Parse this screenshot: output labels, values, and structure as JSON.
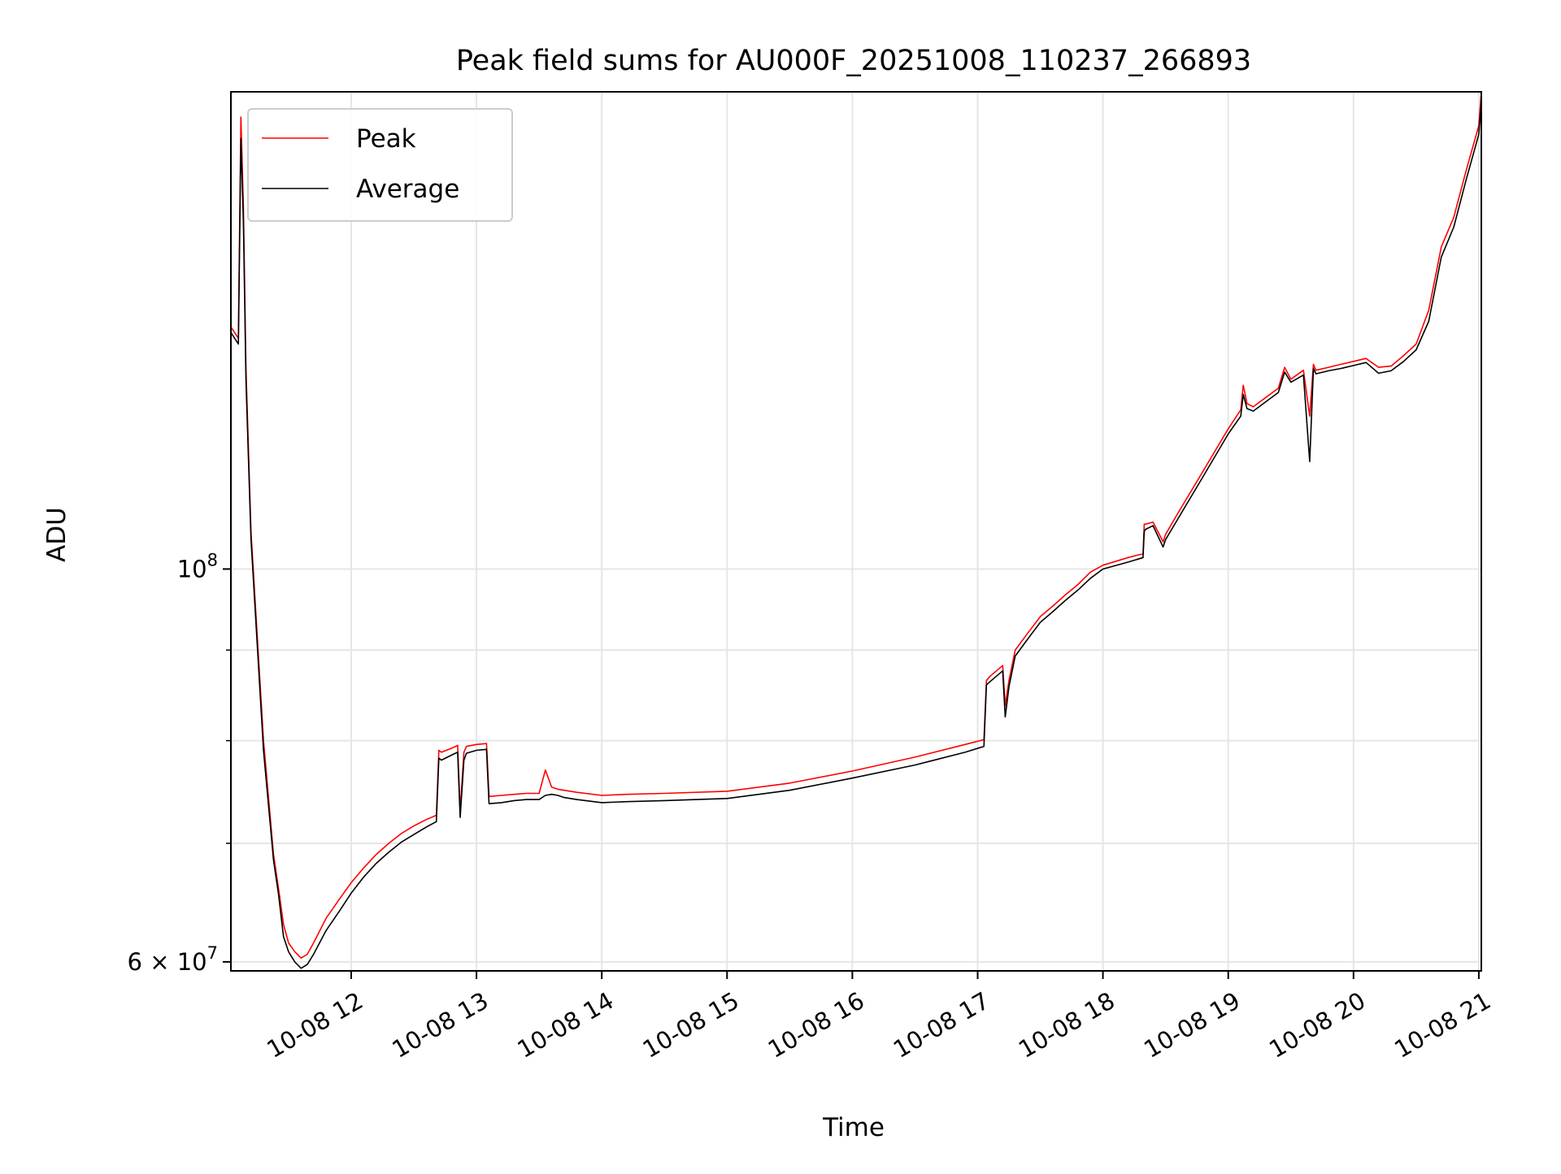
{
  "chart_data": {
    "type": "line",
    "title": "Peak field sums for AU000F_20251008_110237_266893",
    "xlabel": "Time",
    "ylabel": "ADU",
    "yscale": "log",
    "grid": true,
    "legend_position": "top-left",
    "xlim": [
      11.04,
      21.02
    ],
    "ylim": [
      59300000,
      186000000
    ],
    "x_ticks": [
      {
        "value": 12,
        "label": "10-08 12"
      },
      {
        "value": 13,
        "label": "10-08 13"
      },
      {
        "value": 14,
        "label": "10-08 14"
      },
      {
        "value": 15,
        "label": "10-08 15"
      },
      {
        "value": 16,
        "label": "10-08 16"
      },
      {
        "value": 17,
        "label": "10-08 17"
      },
      {
        "value": 18,
        "label": "10-08 18"
      },
      {
        "value": 19,
        "label": "10-08 19"
      },
      {
        "value": 20,
        "label": "10-08 20"
      },
      {
        "value": 21,
        "label": "10-08 21"
      }
    ],
    "y_major_ticks": [
      {
        "value": 100000000,
        "base": "10",
        "exp": "8"
      },
      {
        "value": 60000000,
        "base": "6 × 10",
        "exp": "7"
      }
    ],
    "y_minor_ticks": [
      70000000,
      80000000,
      90000000
    ],
    "x_unit": "hour of day on 10-08",
    "series": [
      {
        "name": "Peak",
        "color": "#ff0000",
        "x": [
          11.04,
          11.1,
          11.12,
          11.14,
          11.16,
          11.2,
          11.3,
          11.38,
          11.42,
          11.46,
          11.5,
          11.55,
          11.6,
          11.65,
          11.7,
          11.8,
          11.9,
          12.0,
          12.1,
          12.2,
          12.3,
          12.4,
          12.5,
          12.6,
          12.68,
          12.7,
          12.72,
          12.8,
          12.85,
          12.87,
          12.9,
          12.92,
          13.0,
          13.08,
          13.1,
          13.2,
          13.3,
          13.4,
          13.5,
          13.55,
          13.6,
          13.65,
          13.7,
          13.8,
          14.0,
          14.2,
          14.5,
          15.0,
          15.5,
          16.0,
          16.5,
          16.9,
          17.05,
          17.07,
          17.1,
          17.2,
          17.22,
          17.25,
          17.3,
          17.4,
          17.5,
          17.6,
          17.7,
          17.8,
          17.9,
          18.0,
          18.2,
          18.32,
          18.33,
          18.34,
          18.4,
          18.48,
          18.5,
          18.6,
          18.8,
          19.0,
          19.1,
          19.12,
          19.15,
          19.2,
          19.3,
          19.4,
          19.45,
          19.5,
          19.6,
          19.65,
          19.68,
          19.7,
          19.8,
          19.9,
          20.0,
          20.1,
          20.2,
          20.3,
          20.4,
          20.5,
          20.6,
          20.7,
          20.8,
          20.9,
          21.0,
          21.02
        ],
        "y": [
          137000000,
          135000000,
          180000000,
          160000000,
          130000000,
          105000000,
          80000000,
          69000000,
          66000000,
          63000000,
          61500000,
          60800000,
          60300000,
          60600000,
          61500000,
          63500000,
          65000000,
          66500000,
          67800000,
          69000000,
          70000000,
          70900000,
          71600000,
          72200000,
          72600000,
          79000000,
          78800000,
          79200000,
          79500000,
          73000000,
          78800000,
          79400000,
          79600000,
          79700000,
          74400000,
          74500000,
          74600000,
          74700000,
          74700000,
          77000000,
          75300000,
          75100000,
          75000000,
          74800000,
          74500000,
          74600000,
          74700000,
          74900000,
          75700000,
          76900000,
          78300000,
          79600000,
          80100000,
          86500000,
          87000000,
          88200000,
          83700000,
          86500000,
          90000000,
          92000000,
          94000000,
          95300000,
          96700000,
          98000000,
          99600000,
          100500000,
          101500000,
          102000000,
          106000000,
          106000000,
          106300000,
          103600000,
          104600000,
          107600000,
          113600000,
          120000000,
          123000000,
          127000000,
          124000000,
          123500000,
          125000000,
          126500000,
          130000000,
          128000000,
          129500000,
          122000000,
          130500000,
          129500000,
          130000000,
          130500000,
          131000000,
          131500000,
          130000000,
          130200000,
          132000000,
          134000000,
          140000000,
          152000000,
          158000000,
          168000000,
          178000000,
          186000000
        ]
      },
      {
        "name": "Average",
        "color": "#000000",
        "x": [
          11.04,
          11.1,
          11.12,
          11.14,
          11.16,
          11.2,
          11.3,
          11.38,
          11.42,
          11.46,
          11.5,
          11.55,
          11.6,
          11.65,
          11.7,
          11.8,
          11.9,
          12.0,
          12.1,
          12.2,
          12.3,
          12.4,
          12.5,
          12.6,
          12.68,
          12.7,
          12.72,
          12.8,
          12.85,
          12.87,
          12.9,
          12.92,
          13.0,
          13.08,
          13.1,
          13.2,
          13.3,
          13.4,
          13.5,
          13.55,
          13.6,
          13.65,
          13.7,
          13.8,
          14.0,
          14.2,
          14.5,
          15.0,
          15.5,
          16.0,
          16.5,
          16.9,
          17.05,
          17.07,
          17.1,
          17.2,
          17.22,
          17.25,
          17.3,
          17.4,
          17.5,
          17.6,
          17.7,
          17.8,
          17.9,
          18.0,
          18.2,
          18.32,
          18.33,
          18.34,
          18.4,
          18.48,
          18.5,
          18.6,
          18.8,
          19.0,
          19.1,
          19.12,
          19.15,
          19.2,
          19.3,
          19.4,
          19.45,
          19.5,
          19.6,
          19.65,
          19.68,
          19.7,
          19.8,
          19.9,
          20.0,
          20.1,
          20.2,
          20.3,
          20.4,
          20.5,
          20.6,
          20.7,
          20.8,
          20.9,
          21.0,
          21.02
        ],
        "y": [
          136000000,
          134000000,
          175000000,
          157000000,
          128000000,
          104000000,
          79000000,
          68500000,
          65500000,
          62000000,
          60800000,
          60000000,
          59500000,
          59800000,
          60600000,
          62500000,
          64000000,
          65600000,
          67000000,
          68200000,
          69200000,
          70100000,
          70800000,
          71500000,
          72000000,
          78200000,
          78000000,
          78500000,
          78800000,
          72400000,
          78000000,
          78700000,
          79000000,
          79100000,
          73700000,
          73800000,
          74000000,
          74100000,
          74100000,
          74500000,
          74600000,
          74500000,
          74300000,
          74100000,
          73800000,
          73900000,
          74000000,
          74200000,
          75000000,
          76200000,
          77500000,
          78800000,
          79400000,
          86000000,
          86400000,
          87600000,
          82500000,
          85800000,
          89300000,
          91300000,
          93300000,
          94600000,
          96000000,
          97300000,
          98800000,
          100000000,
          100900000,
          101500000,
          105000000,
          105300000,
          105800000,
          102900000,
          103900000,
          106800000,
          112800000,
          119200000,
          122000000,
          125500000,
          123200000,
          122800000,
          124300000,
          125800000,
          129200000,
          127500000,
          128700000,
          115000000,
          129800000,
          128900000,
          129400000,
          129800000,
          130300000,
          130800000,
          129000000,
          129400000,
          131000000,
          133000000,
          138000000,
          150000000,
          156000000,
          166000000,
          176000000,
          184000000
        ]
      }
    ]
  }
}
